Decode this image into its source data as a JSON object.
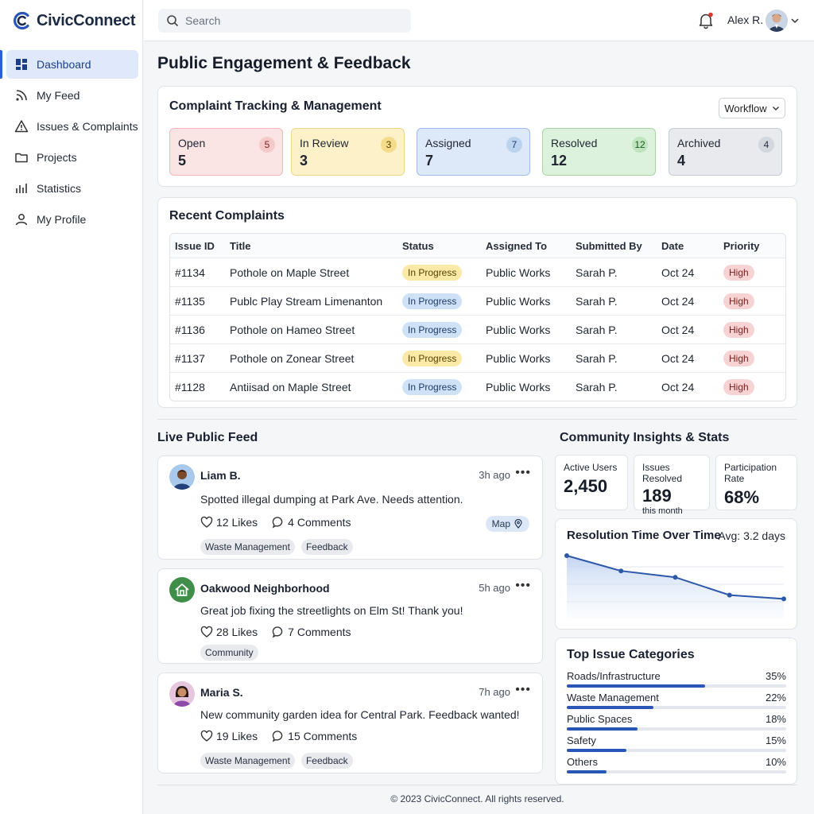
{
  "app": {
    "name": "CivicConnect"
  },
  "colors": {
    "accent": "#2a56b8",
    "open": "#f8dede",
    "review": "#fbf0c6",
    "assigned": "#dde9f9",
    "resolved": "#dcf1dc",
    "archived": "#e8eaee"
  },
  "sidebar": {
    "items": [
      {
        "label": "Dashboard",
        "icon": "dashboard-icon",
        "active": true
      },
      {
        "label": "My Feed",
        "icon": "rss-icon"
      },
      {
        "label": "Issues & Complaints",
        "icon": "warning-icon"
      },
      {
        "label": "Projects",
        "icon": "folder-icon"
      },
      {
        "label": "Statistics",
        "icon": "bar-chart-icon"
      },
      {
        "label": "My Profile",
        "icon": "user-icon"
      }
    ]
  },
  "topbar": {
    "search_placeholder": "Search",
    "user_name": "Alex R."
  },
  "page_title": "Public Engagement & Feedback",
  "complaint_tracking": {
    "title": "Complaint Tracking & Management",
    "workflow_label": "Workflow",
    "statuses": [
      {
        "label": "Open",
        "value": "5",
        "badge": "5"
      },
      {
        "label": "In Review",
        "value": "3",
        "badge": "3"
      },
      {
        "label": "Assigned",
        "value": "7",
        "badge": "7"
      },
      {
        "label": "Resolved",
        "value": "12",
        "badge": "12"
      },
      {
        "label": "Archived",
        "value": "4",
        "badge": "4"
      }
    ]
  },
  "recent_complaints": {
    "title": "Recent Complaints",
    "columns": [
      "Issue ID",
      "Title",
      "Status",
      "Assigned To",
      "Submitted By",
      "Date",
      "Priority"
    ],
    "rows": [
      {
        "id": "#1134",
        "title": "Pothole on Maple Street",
        "status": "In Progress",
        "assigned": "Public Works",
        "submitted": "Sarah P.",
        "date": "Oct 24",
        "priority": "High"
      },
      {
        "id": "#1135",
        "title": "Publc Play Stream Limenanton",
        "status": "In Progress",
        "assigned": "Public Works",
        "submitted": "Sarah P.",
        "date": "Oct 24",
        "priority": "High"
      },
      {
        "id": "#1136",
        "title": "Pothole on Hameo Street",
        "status": "In Progress",
        "assigned": "Public Works",
        "submitted": "Sarah P.",
        "date": "Oct 24",
        "priority": "High"
      },
      {
        "id": "#1137",
        "title": "Pothole on Zonear Street",
        "status": "In Progress",
        "assigned": "Public Works",
        "submitted": "Sarah P.",
        "date": "Oct 24",
        "priority": "High"
      },
      {
        "id": "#1128",
        "title": "Antiisad on Maple Street",
        "status": "In Progress",
        "assigned": "Public Works",
        "submitted": "Sarah P.",
        "date": "Oct 24",
        "priority": "High"
      }
    ]
  },
  "feed": {
    "title": "Live Public Feed",
    "posts": [
      {
        "name": "Liam B.",
        "time": "3h ago",
        "text": "Spotted illegal dumping at Park Ave. Needs attention.",
        "likes": "12 Likes",
        "comments": "4 Comments",
        "map": "Map",
        "tags": [
          "Waste Management",
          "Feedback"
        ]
      },
      {
        "name": "Oakwood Neighborhood",
        "time": "5h ago",
        "text": "Great job fixing the streetlights on Elm St! Thank you!",
        "likes": "28 Likes",
        "comments": "7 Comments",
        "tags": [
          "Community"
        ]
      },
      {
        "name": "Maria S.",
        "time": "7h ago",
        "text": "New community garden idea for Central Park. Feedback wanted!",
        "likes": "19 Likes",
        "comments": "15 Comments",
        "tags": [
          "Waste Management",
          "Feedback"
        ]
      }
    ]
  },
  "insights": {
    "title": "Community Insights & Stats",
    "stats": [
      {
        "label": "Active Users",
        "value": "2,450",
        "sub": ""
      },
      {
        "label": "Issues Resolved",
        "value": "189",
        "sub": "this month"
      },
      {
        "label": "Participation Rate",
        "value": "68%",
        "sub": ""
      }
    ]
  },
  "resolution_chart": {
    "title": "Resolution Time Over Time",
    "avg": "Avg: 3.2 days"
  },
  "chart_data": {
    "type": "area",
    "title": "Resolution Time Over Time",
    "x": [
      1,
      2,
      3,
      4,
      5
    ],
    "values": [
      5.0,
      3.8,
      3.3,
      1.9,
      1.6
    ],
    "ylim": [
      0,
      5.5
    ],
    "grid": true
  },
  "top_categories": {
    "title": "Top Issue Categories",
    "items": [
      {
        "label": "Roads/Infrastructure",
        "percent": "35%",
        "fraction": 0.35
      },
      {
        "label": "Waste Management",
        "percent": "22%",
        "fraction": 0.22
      },
      {
        "label": "Public Spaces",
        "percent": "18%",
        "fraction": 0.18
      },
      {
        "label": "Safety",
        "percent": "15%",
        "fraction": 0.15
      },
      {
        "label": "Others",
        "percent": "10%",
        "fraction": 0.1
      }
    ]
  },
  "footer": "© 2023 CivicConnect. All rights reserved."
}
